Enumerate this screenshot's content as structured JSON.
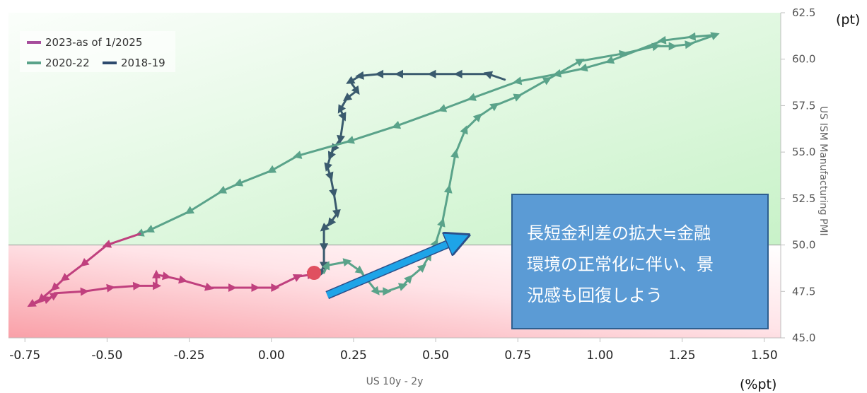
{
  "chart_data": {
    "type": "line",
    "xlabel": "US 10y - 2y",
    "ylabel": "US ISM Manufacturing PMI",
    "x_unit": "(%pt)",
    "y_unit": "(pt)",
    "xlim": [
      -0.8,
      1.55
    ],
    "ylim": [
      45.0,
      62.5
    ],
    "x_ticks": [
      "-0.75",
      "-0.50",
      "-0.25",
      "0.00",
      "0.25",
      "0.50",
      "0.75",
      "1.00",
      "1.25",
      "1.50"
    ],
    "y_ticks": [
      "45.0",
      "47.5",
      "50.0",
      "52.5",
      "55.0",
      "57.5",
      "60.0",
      "62.5"
    ],
    "y_axis_position": "right",
    "grid": false,
    "legend_position": "top-left",
    "legend": [
      {
        "label": "2023-as of 1/2025",
        "color": "#a64d9c"
      },
      {
        "label": "2020-22",
        "color": "#5aa38a"
      },
      {
        "label": "2018-19",
        "color": "#2d4a6e"
      }
    ],
    "background_zones": [
      {
        "range": [
          50.0,
          62.5
        ],
        "color": "#c8f0c8"
      },
      {
        "range": [
          45.0,
          50.0
        ],
        "color": "#f8a0a8"
      }
    ],
    "series": [
      {
        "name": "2018-19",
        "color": "#3a5a6e",
        "points": [
          [
            0.71,
            58.9
          ],
          [
            0.66,
            59.2
          ],
          [
            0.57,
            59.2
          ],
          [
            0.49,
            59.2
          ],
          [
            0.39,
            59.2
          ],
          [
            0.33,
            59.2
          ],
          [
            0.27,
            59.1
          ],
          [
            0.24,
            58.8
          ],
          [
            0.26,
            58.3
          ],
          [
            0.23,
            57.9
          ],
          [
            0.21,
            57.3
          ],
          [
            0.22,
            56.9
          ],
          [
            0.21,
            55.7
          ],
          [
            0.19,
            55.2
          ],
          [
            0.18,
            54.8
          ],
          [
            0.17,
            54.2
          ],
          [
            0.18,
            53.7
          ],
          [
            0.19,
            52.8
          ],
          [
            0.2,
            51.7
          ],
          [
            0.18,
            51.2
          ],
          [
            0.16,
            50.9
          ],
          [
            0.16,
            49.9
          ],
          [
            0.16,
            48.9
          ],
          [
            0.15,
            48.5
          ]
        ]
      },
      {
        "name": "2020-22",
        "color": "#5aa38a",
        "points": [
          [
            0.16,
            48.5
          ],
          [
            0.17,
            48.9
          ],
          [
            0.23,
            49.1
          ],
          [
            0.27,
            48.6
          ],
          [
            0.32,
            47.5
          ],
          [
            0.35,
            47.5
          ],
          [
            0.4,
            47.8
          ],
          [
            0.42,
            48.2
          ],
          [
            0.46,
            48.8
          ],
          [
            0.48,
            49.4
          ],
          [
            0.5,
            50.1
          ],
          [
            0.52,
            51.2
          ],
          [
            0.54,
            53.0
          ],
          [
            0.56,
            54.9
          ],
          [
            0.59,
            56.2
          ],
          [
            0.63,
            56.9
          ],
          [
            0.68,
            57.5
          ],
          [
            0.75,
            58.0
          ],
          [
            0.84,
            58.9
          ],
          [
            0.94,
            59.9
          ],
          [
            1.07,
            60.3
          ],
          [
            1.17,
            60.7
          ],
          [
            1.22,
            60.7
          ],
          [
            1.27,
            60.8
          ],
          [
            1.35,
            61.3
          ],
          [
            1.28,
            61.2
          ],
          [
            1.19,
            61.0
          ],
          [
            1.03,
            59.9
          ],
          [
            0.95,
            59.5
          ],
          [
            0.87,
            59.2
          ],
          [
            0.75,
            58.8
          ],
          [
            0.61,
            57.9
          ],
          [
            0.52,
            57.3
          ],
          [
            0.38,
            56.4
          ],
          [
            0.24,
            55.6
          ],
          [
            0.08,
            54.8
          ],
          [
            0.0,
            54.0
          ],
          [
            -0.1,
            53.3
          ],
          [
            -0.15,
            52.9
          ],
          [
            -0.25,
            51.8
          ],
          [
            -0.37,
            50.8
          ],
          [
            -0.4,
            50.6
          ]
        ]
      },
      {
        "name": "2023-as of 1/2025",
        "color": "#c0407e",
        "points": [
          [
            -0.4,
            50.6
          ],
          [
            -0.5,
            50.0
          ],
          [
            -0.57,
            49.0
          ],
          [
            -0.63,
            48.2
          ],
          [
            -0.66,
            47.7
          ],
          [
            -0.7,
            47.1
          ],
          [
            -0.73,
            46.8
          ],
          [
            -0.68,
            47.1
          ],
          [
            -0.66,
            47.3
          ],
          [
            -0.66,
            47.4
          ],
          [
            -0.57,
            47.5
          ],
          [
            -0.49,
            47.7
          ],
          [
            -0.41,
            47.8
          ],
          [
            -0.35,
            47.8
          ],
          [
            -0.35,
            48.4
          ],
          [
            -0.32,
            48.3
          ],
          [
            -0.27,
            48.1
          ],
          [
            -0.19,
            47.7
          ],
          [
            -0.12,
            47.7
          ],
          [
            -0.05,
            47.7
          ],
          [
            0.01,
            47.7
          ],
          [
            0.08,
            48.3
          ],
          [
            0.12,
            48.4
          ],
          [
            0.13,
            48.3
          ]
        ]
      }
    ],
    "current_point": {
      "x": 0.13,
      "y": 48.5,
      "color": "#e05060"
    },
    "trend_arrow": {
      "from": [
        0.17,
        47.3
      ],
      "to": [
        0.57,
        50.3
      ],
      "color": "#1ea4e8"
    },
    "annotation": {
      "lines": [
        "長短金利差の拡大≒金融",
        "環境の正常化に伴い、景",
        "況感も回復しよう"
      ],
      "background": "#5b9bd5",
      "text_color": "#ffffff"
    }
  }
}
